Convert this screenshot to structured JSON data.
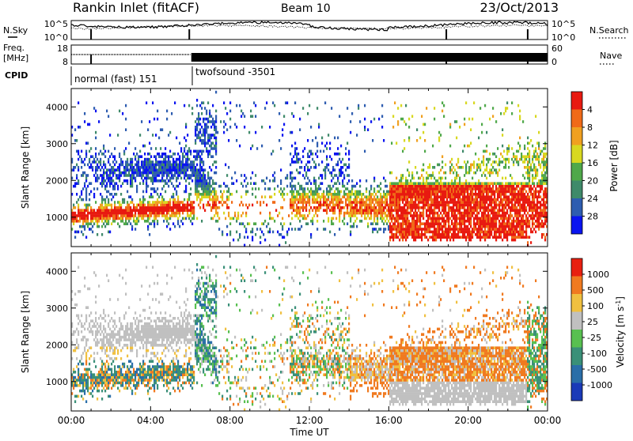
{
  "header": {
    "station": "Rankin Inlet (fitACF)",
    "beam": "Beam 10",
    "date": "23/Oct/2013"
  },
  "top_panels": {
    "nsky_label": "N.Sky",
    "nsearch_label": "N.Search",
    "nsky_ticks": [
      "10^5",
      "10^0"
    ],
    "nsearch_ticks": [
      "10^5",
      "10^0"
    ],
    "freq_label_1": "Freq.",
    "freq_label_2": "[MHz]",
    "freq_ticks": [
      "18",
      "8"
    ],
    "nave_label": "Nave",
    "nave_ticks": [
      "60",
      "0"
    ],
    "cpid_label": "CPID",
    "cpid_segments": [
      {
        "name": "normal (fast) 151",
        "start_hour": 0,
        "end_hour": 6
      },
      {
        "name": "twofsound -3501",
        "start_hour": 6,
        "end_hour": 24
      }
    ]
  },
  "chart_data": [
    {
      "type": "heatmap",
      "name": "power",
      "ylabel": "Slant Range [km]",
      "xlim": [
        0,
        24
      ],
      "ylim": [
        200,
        4500
      ],
      "yticks": [
        1000,
        2000,
        3000,
        4000
      ],
      "colorbar": {
        "label": "Power [dB]",
        "ticks": [
          "4",
          "8",
          "12",
          "16",
          "20",
          "24",
          "28"
        ],
        "colors": [
          "#0a14f0",
          "#2e5db0",
          "#3f8a6a",
          "#4fa84a",
          "#d8d820",
          "#f0a020",
          "#f06a18",
          "#e81a10"
        ]
      }
    },
    {
      "type": "heatmap",
      "name": "velocity",
      "ylabel": "Slant Range [km]",
      "xlabel": "Time UT",
      "xlim": [
        0,
        24
      ],
      "ylim": [
        200,
        4500
      ],
      "yticks": [
        1000,
        2000,
        3000,
        4000
      ],
      "xticks": [
        "00:00",
        "04:00",
        "08:00",
        "12:00",
        "16:00",
        "20:00",
        "00:00"
      ],
      "colorbar": {
        "label": "Velocity [m s^-1]",
        "ticks": [
          "1000",
          "500",
          "100",
          "25",
          "-25",
          "-100",
          "-500",
          "-1000"
        ],
        "colors": [
          "#1a3ab8",
          "#2a6ea8",
          "#3a9078",
          "#58c050",
          "#c0c0c0",
          "#f0c040",
          "#f07a20",
          "#e82010"
        ]
      }
    }
  ]
}
